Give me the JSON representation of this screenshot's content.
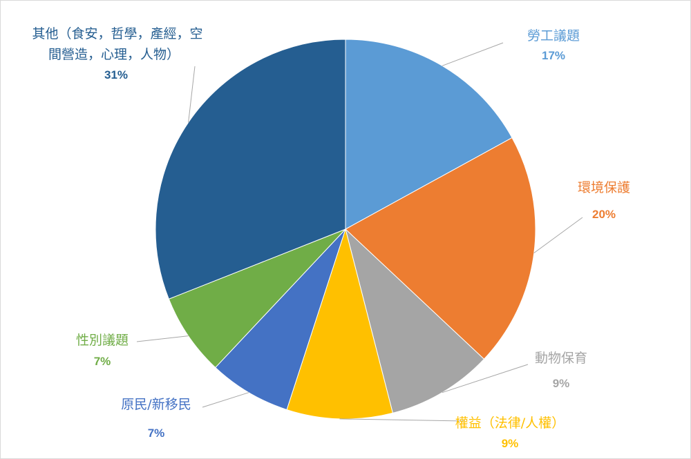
{
  "chart_data": {
    "type": "pie",
    "title": "",
    "slices": [
      {
        "name": "勞工議題",
        "value": 17,
        "pct_label": "17%",
        "color": "#5b9bd5"
      },
      {
        "name": "環境保護",
        "value": 20,
        "pct_label": "20%",
        "color": "#ed7d31"
      },
      {
        "name": "動物保育",
        "value": 9,
        "pct_label": "9%",
        "color": "#a5a5a5"
      },
      {
        "name": "權益（法律/人權）",
        "value": 9,
        "pct_label": "9%",
        "color": "#ffc000"
      },
      {
        "name": "原民/新移民",
        "value": 7,
        "pct_label": "7%",
        "color": "#4472c4"
      },
      {
        "name": "性別議題",
        "value": 7,
        "pct_label": "7%",
        "color": "#70ad47"
      },
      {
        "name": "其他（食安，哲學，產經，空間營造，心理，人物）",
        "name_lines": [
          "其他（食安，哲學，產經，空",
          "間營造，心理，人物）"
        ],
        "value": 31,
        "pct_label": "31%",
        "color": "#255e91"
      }
    ],
    "start_angle": "12 o'clock",
    "direction": "clockwise",
    "legend": "none (data labels outside with leader lines)"
  }
}
